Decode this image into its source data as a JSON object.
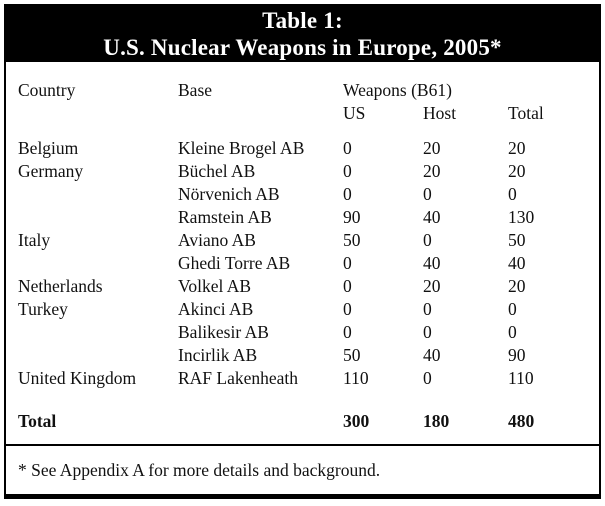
{
  "title": {
    "line1": "Table 1:",
    "line2": "U.S. Nuclear Weapons in Europe, 2005*"
  },
  "table": {
    "headers": {
      "country": "Country",
      "base": "Base",
      "weapons_group": "Weapons (B61)",
      "us": "US",
      "host": "Host",
      "total": "Total"
    },
    "rows": [
      {
        "country": "Belgium",
        "base": "Kleine Brogel AB",
        "us": "0",
        "host": "20",
        "total": "20"
      },
      {
        "country": "Germany",
        "base": "Büchel AB",
        "us": "0",
        "host": "20",
        "total": "20"
      },
      {
        "country": "",
        "base": "Nörvenich AB",
        "us": "0",
        "host": "0",
        "total": "0"
      },
      {
        "country": "",
        "base": "Ramstein AB",
        "us": "90",
        "host": "40",
        "total": "130"
      },
      {
        "country": "Italy",
        "base": "Aviano AB",
        "us": "50",
        "host": "0",
        "total": "50"
      },
      {
        "country": "",
        "base": "Ghedi Torre AB",
        "us": "0",
        "host": "40",
        "total": "40"
      },
      {
        "country": "Netherlands",
        "base": "Volkel AB",
        "us": "0",
        "host": "20",
        "total": "20"
      },
      {
        "country": "Turkey",
        "base": "Akinci AB",
        "us": "0",
        "host": "0",
        "total": "0"
      },
      {
        "country": "",
        "base": "Balikesir AB",
        "us": "0",
        "host": "0",
        "total": "0"
      },
      {
        "country": "",
        "base": "Incirlik AB",
        "us": "50",
        "host": "40",
        "total": "90"
      },
      {
        "country": "United Kingdom",
        "base": "RAF Lakenheath",
        "us": "110",
        "host": "0",
        "total": "110"
      }
    ],
    "total_row": {
      "label": "Total",
      "us": "300",
      "host": "180",
      "total": "480"
    }
  },
  "footnote": "* See Appendix A for more details and background.",
  "colors": {
    "band_background": "#000000",
    "band_text": "#ffffff",
    "body_text": "#111111",
    "border": "#000000",
    "page_background": "#ffffff"
  }
}
